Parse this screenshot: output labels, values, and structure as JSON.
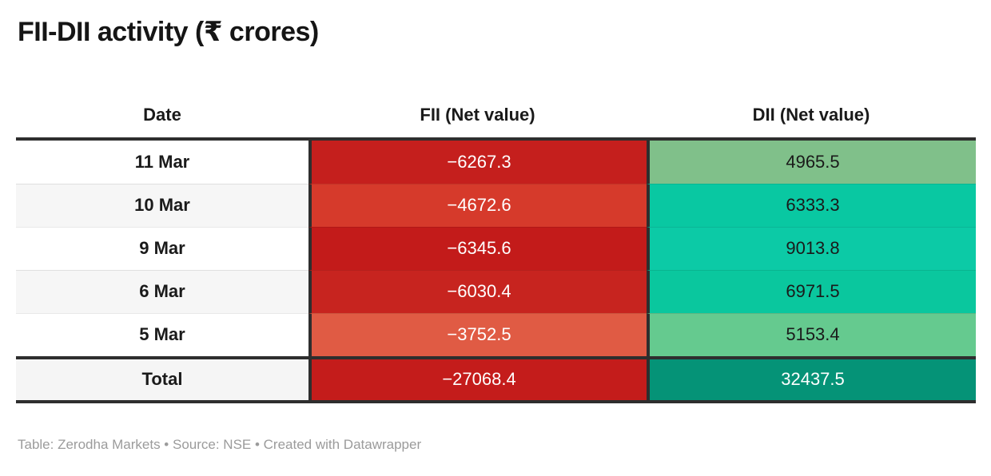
{
  "title": "FII-DII activity (₹ crores)",
  "footer": "Table: Zerodha Markets • Source: NSE • Created with Datawrapper",
  "colors": {
    "border_dark": "#2e2e2e",
    "stripe_bg": "#f6f6f6",
    "title_text": "#151515",
    "footer_text": "#9b9b9b"
  },
  "table": {
    "columns": [
      "Date",
      "FII (Net value)",
      "DII (Net value)"
    ],
    "rows": [
      {
        "date": "11 Mar",
        "fii": "−6267.3",
        "dii": "4965.5",
        "fii_bg": "#c51f1d",
        "fii_fg": "#ffffff",
        "dii_bg": "#80c08a",
        "dii_fg": "#1a1a1a"
      },
      {
        "date": "10 Mar",
        "fii": "−4672.6",
        "dii": "6333.3",
        "fii_bg": "#d63a2b",
        "fii_fg": "#ffffff",
        "dii_bg": "#09c8a2",
        "dii_fg": "#1a1a1a"
      },
      {
        "date": "9 Mar",
        "fii": "−6345.6",
        "dii": "9013.8",
        "fii_bg": "#c31b1a",
        "fii_fg": "#ffffff",
        "dii_bg": "#0ccaa6",
        "dii_fg": "#1a1a1a"
      },
      {
        "date": "6 Mar",
        "fii": "−6030.4",
        "dii": "6971.5",
        "fii_bg": "#c7241f",
        "fii_fg": "#ffffff",
        "dii_bg": "#0ac79e",
        "dii_fg": "#1a1a1a"
      },
      {
        "date": "5 Mar",
        "fii": "−3752.5",
        "dii": "5153.4",
        "fii_bg": "#e05b44",
        "fii_fg": "#ffffff",
        "dii_bg": "#65ca8f",
        "dii_fg": "#1a1a1a"
      }
    ],
    "total": {
      "date": "Total",
      "fii": "−27068.4",
      "dii": "32437.5",
      "fii_bg": "#c41c1b",
      "fii_fg": "#ffffff",
      "dii_bg": "#059377",
      "dii_fg": "#ffffff"
    }
  },
  "chart_data": {
    "type": "table",
    "title": "FII-DII activity (₹ crores)",
    "columns": [
      "Date",
      "FII (Net value)",
      "DII (Net value)"
    ],
    "rows": [
      [
        "11 Mar",
        -6267.3,
        4965.5
      ],
      [
        "10 Mar",
        -4672.6,
        6333.3
      ],
      [
        "9 Mar",
        -6345.6,
        9013.8
      ],
      [
        "6 Mar",
        -6030.4,
        6971.5
      ],
      [
        "5 Mar",
        -3752.5,
        5153.4
      ],
      [
        "Total",
        -27068.4,
        32437.5
      ]
    ],
    "notes": "FII column shaded red (negative net values, white text); DII column shaded green/teal (positive net values); shade intensity scales with magnitude; Total row separated by thick dark rules."
  }
}
